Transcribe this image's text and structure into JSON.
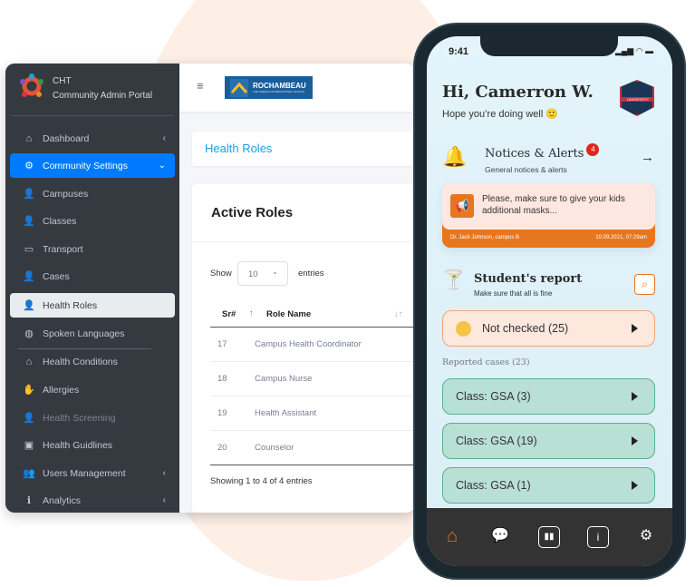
{
  "admin": {
    "brand": {
      "title": "CHT",
      "subtitle": "Community Admin Portal"
    },
    "logo_text": "ROCHAMBEAU",
    "logo_subtext": "THE FRENCH INTERNATIONAL SCHOOL",
    "sidebar": {
      "items": [
        {
          "label": "Dashboard",
          "icon": "home-icon"
        },
        {
          "label": "Community Settings",
          "icon": "gear-icon"
        },
        {
          "label": "Campuses",
          "icon": "user-gear-icon"
        },
        {
          "label": "Classes",
          "icon": "user-gear-icon"
        },
        {
          "label": "Transport",
          "icon": "bus-icon"
        },
        {
          "label": "Cases",
          "icon": "user-gear-icon"
        },
        {
          "label": "Health Roles",
          "icon": "user-gear-icon"
        },
        {
          "label": "Spoken Languages",
          "icon": "globe-icon"
        },
        {
          "label": "Health Conditions",
          "icon": "home-icon"
        },
        {
          "label": "Allergies",
          "icon": "hand-icon"
        },
        {
          "label": "Health Screening",
          "icon": "user-gear-icon"
        },
        {
          "label": "Health Guidlines",
          "icon": "file-plus-icon"
        },
        {
          "label": "Users Management",
          "icon": "users-gear-icon"
        },
        {
          "label": "Analytics",
          "icon": "info-icon"
        }
      ]
    },
    "page_title": "Health Roles",
    "card_title": "Active Roles",
    "show_label": "Show",
    "entries_value": "10",
    "entries_label": "entries",
    "table": {
      "columns": [
        "Sr#",
        "Role Name"
      ],
      "rows": [
        {
          "sr": "17",
          "name": "Campus Health Coordinator"
        },
        {
          "sr": "18",
          "name": "Campus Nurse"
        },
        {
          "sr": "19",
          "name": "Health Assistant"
        },
        {
          "sr": "20",
          "name": "Counselor"
        }
      ]
    },
    "footer": "Showing 1 to 4 of 4 entries",
    "colors": {
      "sidebar": "#343a40",
      "accent": "#007bff",
      "title": "#17a2e8"
    }
  },
  "phone": {
    "time": "9:41",
    "greeting": "Hi, Camerron W.",
    "subgreeting": "Hope you’re doing well 🙂",
    "badge_text": "UNIVERSITY",
    "notices": {
      "title": "Notices & Alerts",
      "count": "4",
      "subtitle": "General notices & alerts"
    },
    "alert": {
      "message": "Please, make sure to give your kids additional masks...",
      "author": "Dr. Jack Johnson, campus B",
      "date": "10.09.2021, 07:29am"
    },
    "report": {
      "title": "Student's report",
      "subtitle": "Make sure that all is fine"
    },
    "not_checked": "Not checked (25)",
    "reported_label": "Reported cases (23)",
    "cases": [
      "Class: GSA (3)",
      "Class: GSA (19)",
      "Class: GSA (1)"
    ],
    "nav": [
      "home-icon",
      "chat-icon",
      "chart-icon",
      "info-icon",
      "settings-icon"
    ],
    "colors": {
      "orange": "#e8761e",
      "nav": "#333333"
    }
  }
}
